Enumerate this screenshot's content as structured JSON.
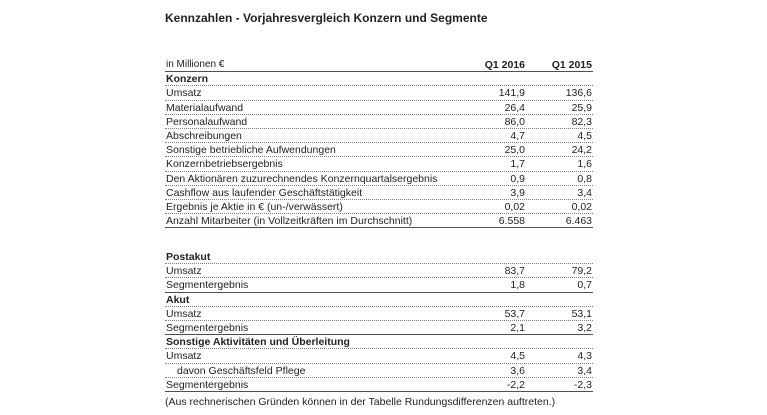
{
  "title": "Kennzahlen - Vorjahresvergleich Konzern und Segmente",
  "header": {
    "label": "in Millionen €",
    "col1": "Q1 2016",
    "col2": "Q1 2015"
  },
  "konzern": {
    "heading": "Konzern",
    "rows": [
      {
        "label": "Umsatz",
        "q1_2016": "141,9",
        "q1_2015": "136,6"
      },
      {
        "label": "Materialaufwand",
        "q1_2016": "26,4",
        "q1_2015": "25,9"
      },
      {
        "label": "Personalaufwand",
        "q1_2016": "86,0",
        "q1_2015": "82,3"
      },
      {
        "label": "Abschreibungen",
        "q1_2016": "4,7",
        "q1_2015": "4,5"
      },
      {
        "label": "Sonstige betriebliche Aufwendungen",
        "q1_2016": "25,0",
        "q1_2015": "24,2"
      },
      {
        "label": "Konzernbetriebsergebnis",
        "q1_2016": "1,7",
        "q1_2015": "1,6"
      },
      {
        "label": "Den Aktionären zuzurechnendes Konzernquartalsergebnis",
        "q1_2016": "0,9",
        "q1_2015": "0,8"
      },
      {
        "label": "Cashflow aus laufender Geschäftstätigkeit",
        "q1_2016": "3,9",
        "q1_2015": "3,4"
      },
      {
        "label": "Ergebnis je Aktie in € (un-/verwässert)",
        "q1_2016": "0,02",
        "q1_2015": "0,02"
      },
      {
        "label": "Anzahl Mitarbeiter (in Vollzeitkräften im Durchschnitt)",
        "q1_2016": "6.558",
        "q1_2015": "6.463"
      }
    ]
  },
  "postakut": {
    "heading": "Postakut",
    "rows": [
      {
        "label": "Umsatz",
        "q1_2016": "83,7",
        "q1_2015": "79,2"
      },
      {
        "label": "Segmentergebnis",
        "q1_2016": "1,8",
        "q1_2015": "0,7"
      }
    ]
  },
  "akut": {
    "heading": "Akut",
    "rows": [
      {
        "label": "Umsatz",
        "q1_2016": "53,7",
        "q1_2015": "53,1"
      },
      {
        "label": "Segmentergebnis",
        "q1_2016": "2,1",
        "q1_2015": "3,2"
      }
    ]
  },
  "sonstige": {
    "heading": "Sonstige Aktivitäten und Überleitung",
    "rows": [
      {
        "label": "Umsatz",
        "q1_2016": "4,5",
        "q1_2015": "4,3"
      },
      {
        "label": "davon Geschäftsfeld Pflege",
        "q1_2016": "3,6",
        "q1_2015": "3,4"
      },
      {
        "label": "Segmentergebnis",
        "q1_2016": "-2,2",
        "q1_2015": "-2,3"
      }
    ]
  },
  "footnote": "(Aus rechnerischen Gründen können in der Tabelle Rundungsdifferenzen auftreten.)"
}
